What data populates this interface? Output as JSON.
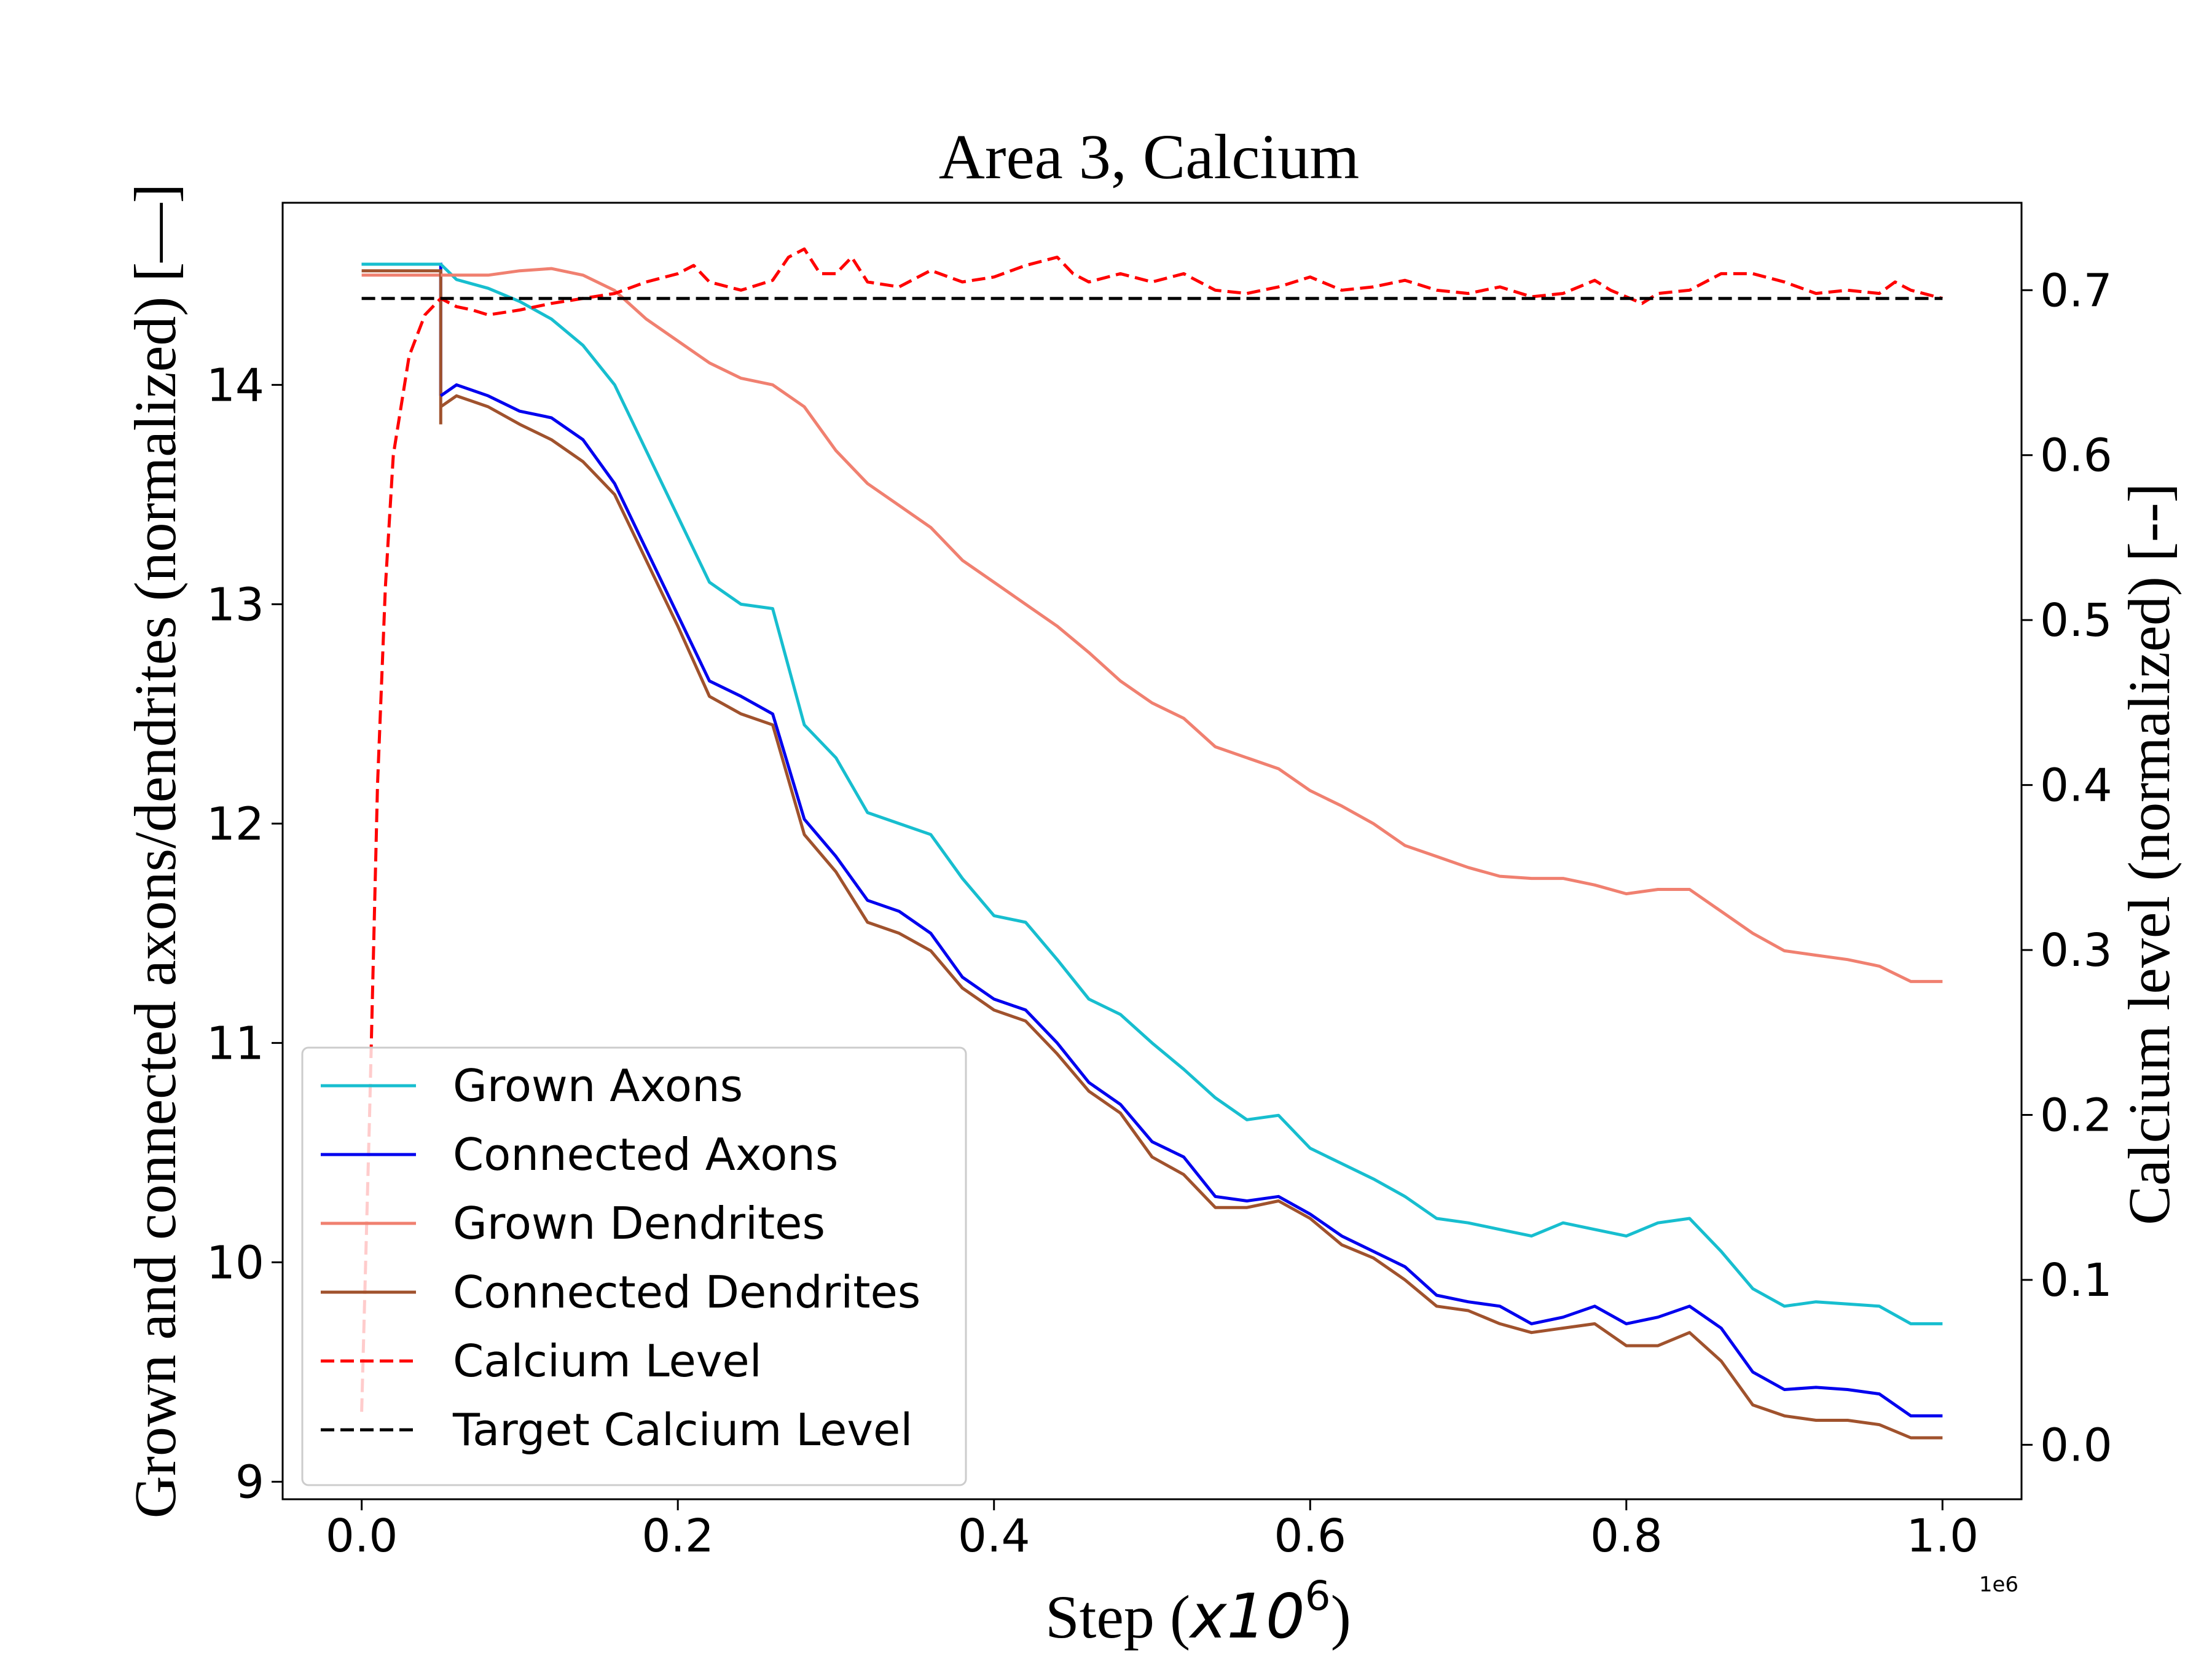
{
  "chart_data": {
    "type": "line",
    "title": "Area 3, Calcium",
    "xlabel": "Step",
    "xlabel_unit_base": "x10",
    "xlabel_unit_exp": "6",
    "offset_text": "1e6",
    "ylabel_left": "Grown and connected axons/dendrites (normalized) [—]",
    "ylabel_right": "Calcium level (normalized) [--]",
    "xlim": [
      -0.05,
      1.05
    ],
    "ylim_left": [
      8.92,
      14.83
    ],
    "ylim_right": [
      -0.033,
      0.753
    ],
    "xticks": [
      0.0,
      0.2,
      0.4,
      0.6,
      0.8,
      1.0
    ],
    "xtick_labels": [
      "0.0",
      "0.2",
      "0.4",
      "0.6",
      "0.8",
      "1.0"
    ],
    "yticks_left": [
      9,
      10,
      11,
      12,
      13,
      14
    ],
    "ytick_labels_left": [
      "9",
      "10",
      "11",
      "12",
      "13",
      "14"
    ],
    "yticks_right": [
      0.0,
      0.1,
      0.2,
      0.3,
      0.4,
      0.5,
      0.6,
      0.7
    ],
    "ytick_labels_right": [
      "0.0",
      "0.1",
      "0.2",
      "0.3",
      "0.4",
      "0.5",
      "0.6",
      "0.7"
    ],
    "grid": false,
    "legend_position": "lower-left",
    "series": [
      {
        "name": "Grown Axons",
        "axis": "left",
        "color": "#17becf",
        "dash": "solid",
        "points": [
          [
            0.0,
            14.55
          ],
          [
            0.05,
            14.55
          ],
          [
            0.06,
            14.48
          ],
          [
            0.08,
            14.44
          ],
          [
            0.1,
            14.38
          ],
          [
            0.12,
            14.3
          ],
          [
            0.14,
            14.18
          ],
          [
            0.16,
            14.0
          ],
          [
            0.18,
            13.7
          ],
          [
            0.2,
            13.4
          ],
          [
            0.22,
            13.1
          ],
          [
            0.24,
            13.0
          ],
          [
            0.26,
            12.98
          ],
          [
            0.28,
            12.45
          ],
          [
            0.3,
            12.3
          ],
          [
            0.32,
            12.05
          ],
          [
            0.34,
            12.0
          ],
          [
            0.36,
            11.95
          ],
          [
            0.38,
            11.75
          ],
          [
            0.4,
            11.58
          ],
          [
            0.42,
            11.55
          ],
          [
            0.44,
            11.38
          ],
          [
            0.46,
            11.2
          ],
          [
            0.48,
            11.13
          ],
          [
            0.5,
            11.0
          ],
          [
            0.52,
            10.88
          ],
          [
            0.54,
            10.75
          ],
          [
            0.56,
            10.65
          ],
          [
            0.58,
            10.67
          ],
          [
            0.6,
            10.52
          ],
          [
            0.62,
            10.45
          ],
          [
            0.64,
            10.38
          ],
          [
            0.66,
            10.3
          ],
          [
            0.68,
            10.2
          ],
          [
            0.7,
            10.18
          ],
          [
            0.72,
            10.15
          ],
          [
            0.74,
            10.12
          ],
          [
            0.76,
            10.18
          ],
          [
            0.78,
            10.15
          ],
          [
            0.8,
            10.12
          ],
          [
            0.82,
            10.18
          ],
          [
            0.84,
            10.2
          ],
          [
            0.86,
            10.05
          ],
          [
            0.88,
            9.88
          ],
          [
            0.9,
            9.8
          ],
          [
            0.92,
            9.82
          ],
          [
            0.94,
            9.81
          ],
          [
            0.96,
            9.8
          ],
          [
            0.98,
            9.72
          ],
          [
            1.0,
            9.72
          ]
        ]
      },
      {
        "name": "Connected Axons",
        "axis": "left",
        "color": "#0000ee",
        "dash": "solid",
        "points": [
          [
            0.05,
            13.95
          ],
          [
            0.06,
            14.0
          ],
          [
            0.08,
            13.95
          ],
          [
            0.1,
            13.88
          ],
          [
            0.12,
            13.85
          ],
          [
            0.14,
            13.75
          ],
          [
            0.16,
            13.55
          ],
          [
            0.18,
            13.25
          ],
          [
            0.2,
            12.95
          ],
          [
            0.22,
            12.65
          ],
          [
            0.24,
            12.58
          ],
          [
            0.26,
            12.5
          ],
          [
            0.28,
            12.02
          ],
          [
            0.3,
            11.85
          ],
          [
            0.32,
            11.65
          ],
          [
            0.34,
            11.6
          ],
          [
            0.36,
            11.5
          ],
          [
            0.38,
            11.3
          ],
          [
            0.4,
            11.2
          ],
          [
            0.42,
            11.15
          ],
          [
            0.44,
            11.0
          ],
          [
            0.46,
            10.82
          ],
          [
            0.48,
            10.72
          ],
          [
            0.5,
            10.55
          ],
          [
            0.52,
            10.48
          ],
          [
            0.54,
            10.3
          ],
          [
            0.56,
            10.28
          ],
          [
            0.58,
            10.3
          ],
          [
            0.6,
            10.22
          ],
          [
            0.62,
            10.12
          ],
          [
            0.64,
            10.05
          ],
          [
            0.66,
            9.98
          ],
          [
            0.68,
            9.85
          ],
          [
            0.7,
            9.82
          ],
          [
            0.72,
            9.8
          ],
          [
            0.74,
            9.72
          ],
          [
            0.76,
            9.75
          ],
          [
            0.78,
            9.8
          ],
          [
            0.8,
            9.72
          ],
          [
            0.82,
            9.75
          ],
          [
            0.84,
            9.8
          ],
          [
            0.86,
            9.7
          ],
          [
            0.88,
            9.5
          ],
          [
            0.9,
            9.42
          ],
          [
            0.92,
            9.43
          ],
          [
            0.94,
            9.42
          ],
          [
            0.96,
            9.4
          ],
          [
            0.98,
            9.3
          ],
          [
            1.0,
            9.3
          ]
        ]
      },
      {
        "name": "Grown Dendrites",
        "axis": "left",
        "color": "#f08070",
        "dash": "solid",
        "points": [
          [
            0.05,
            14.5
          ],
          [
            0.06,
            14.5
          ],
          [
            0.08,
            14.5
          ],
          [
            0.1,
            14.52
          ],
          [
            0.12,
            14.53
          ],
          [
            0.14,
            14.5
          ],
          [
            0.16,
            14.43
          ],
          [
            0.18,
            14.3
          ],
          [
            0.2,
            14.2
          ],
          [
            0.22,
            14.1
          ],
          [
            0.24,
            14.03
          ],
          [
            0.26,
            14.0
          ],
          [
            0.28,
            13.9
          ],
          [
            0.3,
            13.7
          ],
          [
            0.32,
            13.55
          ],
          [
            0.34,
            13.45
          ],
          [
            0.36,
            13.35
          ],
          [
            0.38,
            13.2
          ],
          [
            0.4,
            13.1
          ],
          [
            0.42,
            13.0
          ],
          [
            0.44,
            12.9
          ],
          [
            0.46,
            12.78
          ],
          [
            0.48,
            12.65
          ],
          [
            0.5,
            12.55
          ],
          [
            0.52,
            12.48
          ],
          [
            0.54,
            12.35
          ],
          [
            0.56,
            12.3
          ],
          [
            0.58,
            12.25
          ],
          [
            0.6,
            12.15
          ],
          [
            0.62,
            12.08
          ],
          [
            0.64,
            12.0
          ],
          [
            0.66,
            11.9
          ],
          [
            0.68,
            11.85
          ],
          [
            0.7,
            11.8
          ],
          [
            0.72,
            11.76
          ],
          [
            0.74,
            11.75
          ],
          [
            0.76,
            11.75
          ],
          [
            0.78,
            11.72
          ],
          [
            0.8,
            11.68
          ],
          [
            0.82,
            11.7
          ],
          [
            0.84,
            11.7
          ],
          [
            0.86,
            11.6
          ],
          [
            0.88,
            11.5
          ],
          [
            0.9,
            11.42
          ],
          [
            0.92,
            11.4
          ],
          [
            0.94,
            11.38
          ],
          [
            0.96,
            11.35
          ],
          [
            0.98,
            11.28
          ],
          [
            1.0,
            11.28
          ]
        ]
      },
      {
        "name": "Connected Dendrites",
        "axis": "left",
        "color": "#a0522d",
        "dash": "solid",
        "points": [
          [
            0.05,
            13.9
          ],
          [
            0.06,
            13.95
          ],
          [
            0.08,
            13.9
          ],
          [
            0.1,
            13.82
          ],
          [
            0.12,
            13.75
          ],
          [
            0.14,
            13.65
          ],
          [
            0.16,
            13.5
          ],
          [
            0.18,
            13.2
          ],
          [
            0.2,
            12.9
          ],
          [
            0.22,
            12.58
          ],
          [
            0.24,
            12.5
          ],
          [
            0.26,
            12.45
          ],
          [
            0.28,
            11.95
          ],
          [
            0.3,
            11.78
          ],
          [
            0.32,
            11.55
          ],
          [
            0.34,
            11.5
          ],
          [
            0.36,
            11.42
          ],
          [
            0.38,
            11.25
          ],
          [
            0.4,
            11.15
          ],
          [
            0.42,
            11.1
          ],
          [
            0.44,
            10.95
          ],
          [
            0.46,
            10.78
          ],
          [
            0.48,
            10.68
          ],
          [
            0.5,
            10.48
          ],
          [
            0.52,
            10.4
          ],
          [
            0.54,
            10.25
          ],
          [
            0.56,
            10.25
          ],
          [
            0.58,
            10.28
          ],
          [
            0.6,
            10.2
          ],
          [
            0.62,
            10.08
          ],
          [
            0.64,
            10.02
          ],
          [
            0.66,
            9.92
          ],
          [
            0.68,
            9.8
          ],
          [
            0.7,
            9.78
          ],
          [
            0.72,
            9.72
          ],
          [
            0.74,
            9.68
          ],
          [
            0.76,
            9.7
          ],
          [
            0.78,
            9.72
          ],
          [
            0.8,
            9.62
          ],
          [
            0.82,
            9.62
          ],
          [
            0.84,
            9.68
          ],
          [
            0.86,
            9.55
          ],
          [
            0.88,
            9.35
          ],
          [
            0.9,
            9.3
          ],
          [
            0.92,
            9.28
          ],
          [
            0.94,
            9.28
          ],
          [
            0.96,
            9.26
          ],
          [
            0.98,
            9.2
          ],
          [
            1.0,
            9.2
          ]
        ]
      },
      {
        "name": "Calcium Level",
        "axis": "right",
        "color": "#ff0000",
        "dash": "dashed",
        "points": [
          [
            0.0,
            0.02
          ],
          [
            0.005,
            0.2
          ],
          [
            0.01,
            0.4
          ],
          [
            0.015,
            0.52
          ],
          [
            0.02,
            0.6
          ],
          [
            0.03,
            0.66
          ],
          [
            0.04,
            0.685
          ],
          [
            0.05,
            0.695
          ],
          [
            0.06,
            0.69
          ],
          [
            0.07,
            0.688
          ],
          [
            0.08,
            0.685
          ],
          [
            0.1,
            0.688
          ],
          [
            0.12,
            0.692
          ],
          [
            0.14,
            0.695
          ],
          [
            0.16,
            0.698
          ],
          [
            0.18,
            0.705
          ],
          [
            0.2,
            0.71
          ],
          [
            0.21,
            0.715
          ],
          [
            0.22,
            0.705
          ],
          [
            0.24,
            0.7
          ],
          [
            0.26,
            0.706
          ],
          [
            0.27,
            0.72
          ],
          [
            0.28,
            0.725
          ],
          [
            0.29,
            0.71
          ],
          [
            0.3,
            0.71
          ],
          [
            0.31,
            0.72
          ],
          [
            0.32,
            0.705
          ],
          [
            0.34,
            0.702
          ],
          [
            0.36,
            0.712
          ],
          [
            0.38,
            0.705
          ],
          [
            0.4,
            0.708
          ],
          [
            0.42,
            0.715
          ],
          [
            0.44,
            0.72
          ],
          [
            0.45,
            0.71
          ],
          [
            0.46,
            0.705
          ],
          [
            0.48,
            0.71
          ],
          [
            0.5,
            0.705
          ],
          [
            0.52,
            0.71
          ],
          [
            0.54,
            0.7
          ],
          [
            0.56,
            0.698
          ],
          [
            0.58,
            0.702
          ],
          [
            0.6,
            0.708
          ],
          [
            0.62,
            0.7
          ],
          [
            0.64,
            0.702
          ],
          [
            0.66,
            0.706
          ],
          [
            0.68,
            0.7
          ],
          [
            0.7,
            0.698
          ],
          [
            0.72,
            0.702
          ],
          [
            0.74,
            0.696
          ],
          [
            0.76,
            0.698
          ],
          [
            0.78,
            0.706
          ],
          [
            0.79,
            0.7
          ],
          [
            0.8,
            0.696
          ],
          [
            0.81,
            0.692
          ],
          [
            0.82,
            0.698
          ],
          [
            0.84,
            0.7
          ],
          [
            0.86,
            0.71
          ],
          [
            0.88,
            0.71
          ],
          [
            0.9,
            0.705
          ],
          [
            0.92,
            0.698
          ],
          [
            0.94,
            0.7
          ],
          [
            0.96,
            0.698
          ],
          [
            0.97,
            0.705
          ],
          [
            0.98,
            0.7
          ],
          [
            1.0,
            0.695
          ]
        ]
      },
      {
        "name": "Target Calcium Level",
        "axis": "right",
        "color": "#000000",
        "dash": "dashed",
        "points": [
          [
            0.0,
            0.695
          ],
          [
            1.0,
            0.695
          ]
        ]
      }
    ],
    "annotations": [
      {
        "axis": "left",
        "color": "#17becf",
        "points": [
          [
            0.0,
            14.55
          ],
          [
            0.05,
            14.55
          ]
        ]
      },
      {
        "axis": "left",
        "color": "#0000ee",
        "points": [
          [
            0.0,
            14.55
          ],
          [
            0.05,
            14.55
          ],
          [
            0.05,
            13.95
          ]
        ]
      },
      {
        "axis": "left",
        "color": "#f08070",
        "points": [
          [
            0.0,
            14.5
          ],
          [
            0.05,
            14.5
          ]
        ]
      },
      {
        "axis": "left",
        "color": "#a0522d",
        "points": [
          [
            0.0,
            14.52
          ],
          [
            0.05,
            14.52
          ],
          [
            0.05,
            13.82
          ],
          [
            0.05,
            13.95
          ]
        ]
      }
    ]
  }
}
